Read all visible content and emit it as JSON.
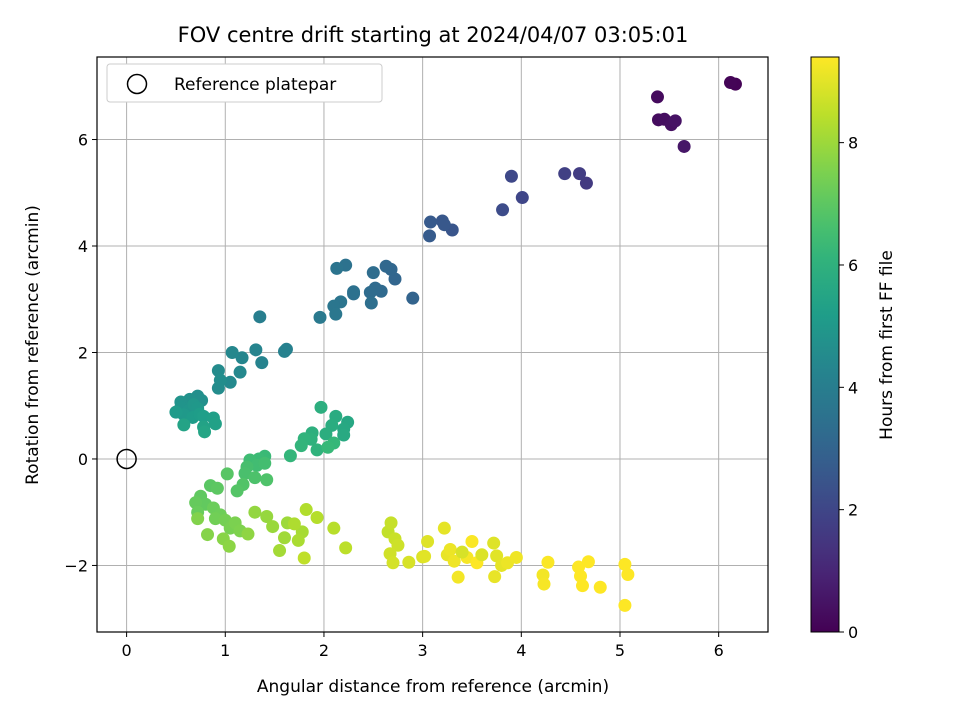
{
  "chart_data": {
    "type": "scatter",
    "title": "FOV centre drift starting at 2024/04/07 03:05:01",
    "xlabel": "Angular distance from reference (arcmin)",
    "ylabel": "Rotation from reference (arcmin)",
    "xlim": [
      -0.3,
      6.5
    ],
    "ylim": [
      -3.25,
      7.55
    ],
    "xticks": [
      0,
      1,
      2,
      3,
      4,
      5,
      6
    ],
    "xtick_labels": [
      "0",
      "1",
      "2",
      "3",
      "4",
      "5",
      "6"
    ],
    "yticks": [
      -2,
      0,
      2,
      4,
      6
    ],
    "ytick_labels": [
      "−2",
      "0",
      "2",
      "4",
      "6"
    ],
    "grid": true,
    "legend": {
      "placement": "upper-left",
      "entries": [
        "Reference platepar"
      ]
    },
    "reference_point": {
      "x": 0,
      "y": 0
    },
    "colorbar": {
      "label": "Hours from first FF file",
      "range": [
        0,
        9.4
      ],
      "ticks": [
        0,
        2,
        4,
        6,
        8
      ],
      "tick_labels": [
        "0",
        "2",
        "4",
        "6",
        "8"
      ],
      "colormap": "viridis"
    },
    "points": [
      [
        6.17,
        7.04,
        0.05
      ],
      [
        6.12,
        7.07,
        0.1
      ],
      [
        5.38,
        6.8,
        0.25
      ],
      [
        5.39,
        6.37,
        0.3
      ],
      [
        5.45,
        6.38,
        0.35
      ],
      [
        5.52,
        6.28,
        0.4
      ],
      [
        5.56,
        6.35,
        0.45
      ],
      [
        5.65,
        5.87,
        0.55
      ],
      [
        4.66,
        5.18,
        1.6
      ],
      [
        4.59,
        5.36,
        1.7
      ],
      [
        4.44,
        5.36,
        1.8
      ],
      [
        4.01,
        4.91,
        2.0
      ],
      [
        3.9,
        5.31,
        2.05
      ],
      [
        3.81,
        4.68,
        2.2
      ],
      [
        3.3,
        4.3,
        2.5
      ],
      [
        3.2,
        4.47,
        2.55
      ],
      [
        3.22,
        4.4,
        2.6
      ],
      [
        3.08,
        4.45,
        2.65
      ],
      [
        3.07,
        4.19,
        2.7
      ],
      [
        2.9,
        3.02,
        3.0
      ],
      [
        2.72,
        3.38,
        3.05
      ],
      [
        2.68,
        3.56,
        3.1
      ],
      [
        2.63,
        3.62,
        3.15
      ],
      [
        2.58,
        3.15,
        3.2
      ],
      [
        2.52,
        3.21,
        3.25
      ],
      [
        2.47,
        3.13,
        3.3
      ],
      [
        2.5,
        3.5,
        3.35
      ],
      [
        2.48,
        2.93,
        3.4
      ],
      [
        2.3,
        3.1,
        3.45
      ],
      [
        2.3,
        3.14,
        3.5
      ],
      [
        2.22,
        3.64,
        3.55
      ],
      [
        2.13,
        3.58,
        3.6
      ],
      [
        2.17,
        2.95,
        3.65
      ],
      [
        2.1,
        2.87,
        3.7
      ],
      [
        2.12,
        2.72,
        3.75
      ],
      [
        1.96,
        2.66,
        3.8
      ],
      [
        1.35,
        2.67,
        4.0
      ],
      [
        1.62,
        2.06,
        4.1
      ],
      [
        1.6,
        2.02,
        4.15
      ],
      [
        1.37,
        1.81,
        4.2
      ],
      [
        1.31,
        2.05,
        4.25
      ],
      [
        1.17,
        1.9,
        4.3
      ],
      [
        1.07,
        2.0,
        4.35
      ],
      [
        1.15,
        1.63,
        4.4
      ],
      [
        1.05,
        1.44,
        4.45
      ],
      [
        0.93,
        1.66,
        4.5
      ],
      [
        0.93,
        1.33,
        4.55
      ],
      [
        0.95,
        1.48,
        4.6
      ],
      [
        0.72,
        1.18,
        4.65
      ],
      [
        0.76,
        1.1,
        4.7
      ],
      [
        0.64,
        1.12,
        4.75
      ],
      [
        0.55,
        1.07,
        4.8
      ],
      [
        0.55,
        0.97,
        4.85
      ],
      [
        0.62,
        0.9,
        4.9
      ],
      [
        0.68,
        1.02,
        4.95
      ],
      [
        0.72,
        0.95,
        5.0
      ],
      [
        0.58,
        0.83,
        5.05
      ],
      [
        0.5,
        0.88,
        5.1
      ],
      [
        0.67,
        0.78,
        5.15
      ],
      [
        0.74,
        0.84,
        5.2
      ],
      [
        0.78,
        0.8,
        5.25
      ],
      [
        0.88,
        0.77,
        5.3
      ],
      [
        0.9,
        0.66,
        5.35
      ],
      [
        0.78,
        0.6,
        5.4
      ],
      [
        0.58,
        0.64,
        5.45
      ],
      [
        0.79,
        0.51,
        5.5
      ],
      [
        2.24,
        0.69,
        5.6
      ],
      [
        2.2,
        0.56,
        5.65
      ],
      [
        2.2,
        0.45,
        5.7
      ],
      [
        2.12,
        0.8,
        5.75
      ],
      [
        2.08,
        0.63,
        5.8
      ],
      [
        2.02,
        0.47,
        5.85
      ],
      [
        1.97,
        0.97,
        5.9
      ],
      [
        1.88,
        0.49,
        5.95
      ],
      [
        1.87,
        0.37,
        6.0
      ],
      [
        1.93,
        0.17,
        6.05
      ],
      [
        1.8,
        0.38,
        6.1
      ],
      [
        1.77,
        0.25,
        6.15
      ],
      [
        1.66,
        0.06,
        6.2
      ],
      [
        2.1,
        0.3,
        6.25
      ],
      [
        2.04,
        0.22,
        6.3
      ],
      [
        1.4,
        0.05,
        6.35
      ],
      [
        1.34,
        0.0,
        6.4
      ],
      [
        1.25,
        -0.02,
        6.45
      ],
      [
        1.32,
        -0.12,
        6.5
      ],
      [
        1.4,
        -0.08,
        6.55
      ],
      [
        1.22,
        -0.15,
        6.6
      ],
      [
        1.2,
        -0.27,
        6.65
      ],
      [
        1.3,
        -0.35,
        6.7
      ],
      [
        1.42,
        -0.39,
        6.75
      ],
      [
        1.18,
        -0.48,
        6.8
      ],
      [
        1.12,
        -0.6,
        6.85
      ],
      [
        1.02,
        -0.28,
        6.9
      ],
      [
        0.85,
        -0.5,
        6.95
      ],
      [
        0.92,
        -0.55,
        7.0
      ],
      [
        0.75,
        -0.7,
        7.05
      ],
      [
        0.8,
        -0.85,
        7.1
      ],
      [
        0.7,
        -0.82,
        7.15
      ],
      [
        0.72,
        -1.0,
        7.2
      ],
      [
        0.88,
        -0.92,
        7.25
      ],
      [
        0.95,
        -1.05,
        7.3
      ],
      [
        0.9,
        -1.12,
        7.35
      ],
      [
        1.0,
        -1.15,
        7.4
      ],
      [
        1.05,
        -1.3,
        7.45
      ],
      [
        1.1,
        -1.2,
        7.5
      ],
      [
        1.15,
        -1.35,
        7.55
      ],
      [
        0.72,
        -1.12,
        7.6
      ],
      [
        0.82,
        -1.42,
        7.65
      ],
      [
        0.98,
        -1.5,
        7.7
      ],
      [
        1.04,
        -1.64,
        7.75
      ],
      [
        1.23,
        -1.41,
        7.8
      ],
      [
        1.3,
        -1.0,
        7.85
      ],
      [
        1.42,
        -1.08,
        7.9
      ],
      [
        1.48,
        -1.27,
        7.95
      ],
      [
        1.63,
        -1.2,
        8.0
      ],
      [
        1.6,
        -1.48,
        8.05
      ],
      [
        1.55,
        -1.72,
        8.1
      ],
      [
        1.78,
        -1.37,
        8.15
      ],
      [
        1.74,
        -1.53,
        8.2
      ],
      [
        1.7,
        -1.22,
        8.25
      ],
      [
        1.82,
        -0.95,
        8.3
      ],
      [
        1.93,
        -1.1,
        8.35
      ],
      [
        2.1,
        -1.3,
        8.4
      ],
      [
        2.22,
        -1.67,
        8.45
      ],
      [
        1.8,
        -1.86,
        8.5
      ],
      [
        2.65,
        -1.37,
        8.55
      ],
      [
        2.68,
        -1.2,
        8.6
      ],
      [
        2.72,
        -1.5,
        8.65
      ],
      [
        2.75,
        -1.62,
        8.7
      ],
      [
        2.67,
        -1.78,
        8.75
      ],
      [
        2.7,
        -1.95,
        8.8
      ],
      [
        2.86,
        -1.94,
        8.85
      ],
      [
        3.0,
        -1.84,
        8.9
      ],
      [
        3.05,
        -1.55,
        8.95
      ],
      [
        3.02,
        -1.83,
        9.0
      ],
      [
        3.22,
        -1.3,
        9.05
      ],
      [
        3.25,
        -1.8,
        9.1
      ],
      [
        3.28,
        -1.7,
        9.15
      ],
      [
        3.32,
        -1.92,
        9.2
      ],
      [
        3.36,
        -2.22,
        9.25
      ],
      [
        3.45,
        -1.85,
        9.3
      ],
      [
        3.5,
        -1.55,
        9.35
      ],
      [
        3.55,
        -1.95,
        9.4
      ]
    ],
    "points_late": [
      [
        3.4,
        -1.75,
        8.85
      ],
      [
        3.6,
        -1.8,
        8.9
      ],
      [
        3.72,
        -1.58,
        8.95
      ],
      [
        3.75,
        -1.82,
        9.0
      ],
      [
        3.8,
        -2.0,
        9.05
      ],
      [
        3.73,
        -2.21,
        9.1
      ],
      [
        3.86,
        -1.95,
        9.15
      ],
      [
        3.95,
        -1.85,
        9.2
      ],
      [
        4.22,
        -2.18,
        9.25
      ],
      [
        4.23,
        -2.35,
        9.3
      ],
      [
        4.27,
        -1.94,
        9.35
      ],
      [
        4.58,
        -2.03,
        9.4
      ],
      [
        4.6,
        -2.2,
        9.4
      ],
      [
        4.62,
        -2.38,
        9.4
      ],
      [
        4.68,
        -1.93,
        9.4
      ],
      [
        4.8,
        -2.41,
        9.4
      ],
      [
        5.05,
        -1.98,
        9.4
      ],
      [
        5.08,
        -2.17,
        9.4
      ],
      [
        5.05,
        -2.75,
        9.4
      ]
    ]
  }
}
